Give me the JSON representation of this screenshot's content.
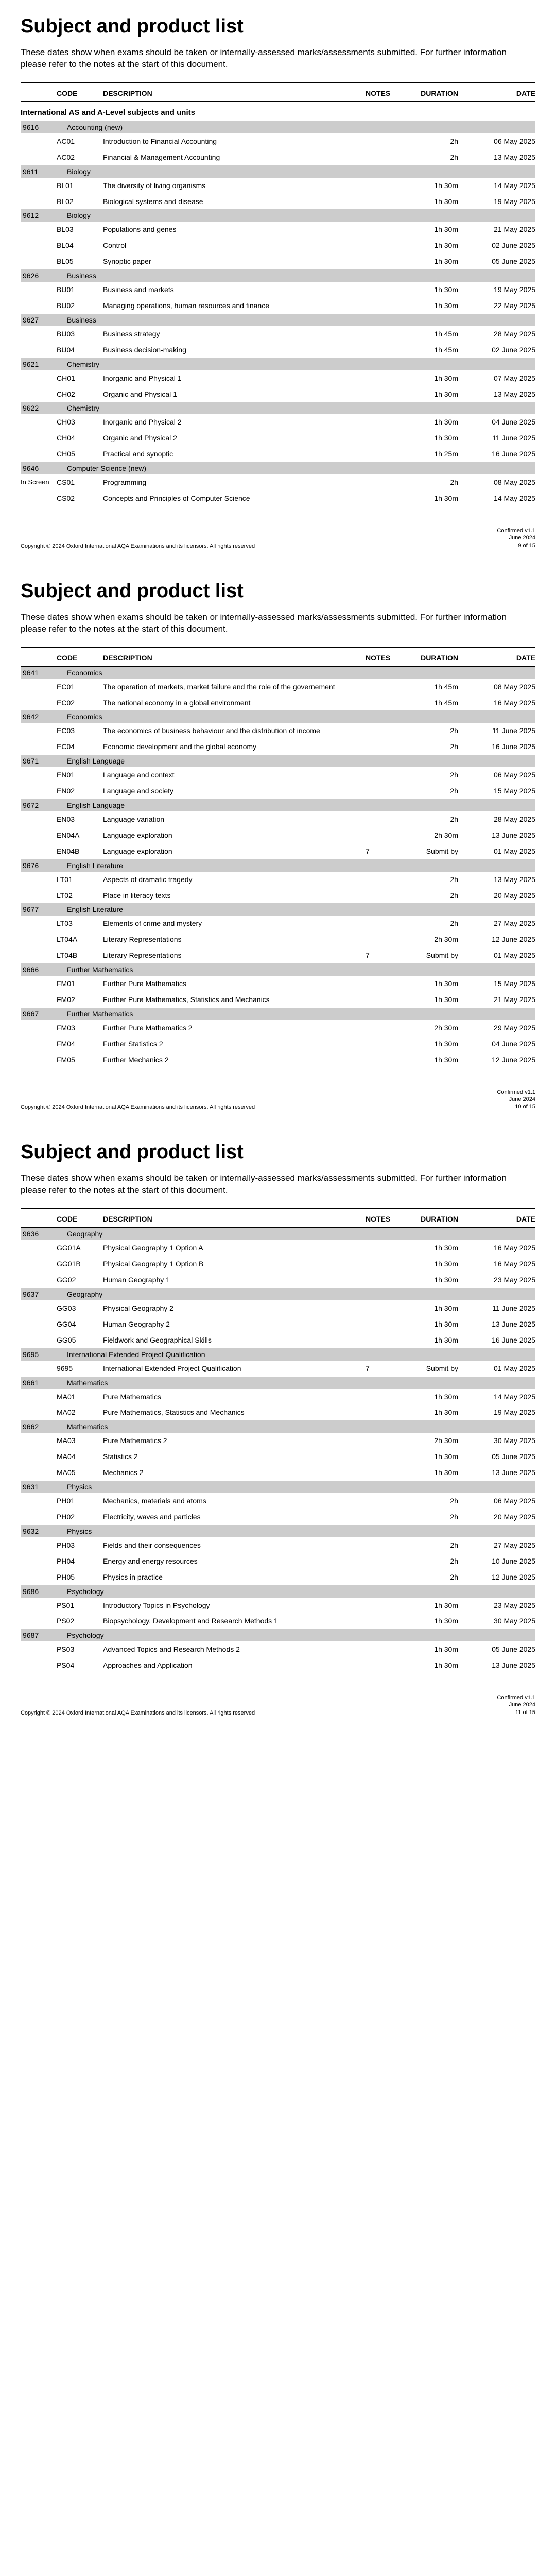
{
  "title": "Subject and product list",
  "intro": "These dates show when exams should be taken or internally-assessed marks/assessments submitted.  For further information please refer to the notes at the start of this document.",
  "headers": {
    "code": "CODE",
    "description": "DESCRIPTION",
    "notes": "NOTES",
    "duration": "DURATION",
    "date": "DATE"
  },
  "copyright": "Copyright © 2024 Oxford International AQA Examinations and its licensors. All rights reserved",
  "confirmed": "Confirmed v1.1",
  "confirmed_date": "June 2024",
  "pages": [
    {
      "page_num": "9 of 15",
      "section_heading": "International AS and A-Level subjects and units",
      "groups": [
        {
          "code": "9616",
          "name": "Accounting (new)",
          "rows": [
            {
              "code": "AC01",
              "desc": "Introduction to Financial Accounting",
              "notes": "",
              "dur": "2h",
              "date": "06 May 2025"
            },
            {
              "code": "AC02",
              "desc": "Financial & Management Accounting",
              "notes": "",
              "dur": "2h",
              "date": "13 May 2025"
            }
          ]
        },
        {
          "code": "9611",
          "name": "Biology",
          "rows": [
            {
              "code": "BL01",
              "desc": "The diversity of living organisms",
              "notes": "",
              "dur": "1h 30m",
              "date": "14 May 2025"
            },
            {
              "code": "BL02",
              "desc": "Biological systems and disease",
              "notes": "",
              "dur": "1h 30m",
              "date": "19 May 2025"
            }
          ]
        },
        {
          "code": "9612",
          "name": "Biology",
          "rows": [
            {
              "code": "BL03",
              "desc": "Populations and genes",
              "notes": "",
              "dur": "1h 30m",
              "date": "21 May 2025"
            },
            {
              "code": "BL04",
              "desc": "Control",
              "notes": "",
              "dur": "1h 30m",
              "date": "02 June 2025"
            },
            {
              "code": "BL05",
              "desc": "Synoptic paper",
              "notes": "",
              "dur": "1h 30m",
              "date": "05 June 2025"
            }
          ]
        },
        {
          "code": "9626",
          "name": "Business",
          "rows": [
            {
              "code": "BU01",
              "desc": "Business and markets",
              "notes": "",
              "dur": "1h 30m",
              "date": "19 May 2025"
            },
            {
              "code": "BU02",
              "desc": "Managing operations, human resources and finance",
              "notes": "",
              "dur": "1h 30m",
              "date": "22 May 2025"
            }
          ]
        },
        {
          "code": "9627",
          "name": "Business",
          "rows": [
            {
              "code": "BU03",
              "desc": "Business strategy",
              "notes": "",
              "dur": "1h 45m",
              "date": "28 May 2025"
            },
            {
              "code": "BU04",
              "desc": "Business decision-making",
              "notes": "",
              "dur": "1h 45m",
              "date": "02 June 2025"
            }
          ]
        },
        {
          "code": "9621",
          "name": "Chemistry",
          "rows": [
            {
              "code": "CH01",
              "desc": "Inorganic and Physical 1",
              "notes": "",
              "dur": "1h 30m",
              "date": "07 May 2025"
            },
            {
              "code": "CH02",
              "desc": "Organic and Physical 1",
              "notes": "",
              "dur": "1h 30m",
              "date": "13 May 2025"
            }
          ]
        },
        {
          "code": "9622",
          "name": "Chemistry",
          "rows": [
            {
              "code": "CH03",
              "desc": "Inorganic and Physical 2",
              "notes": "",
              "dur": "1h 30m",
              "date": "04 June 2025"
            },
            {
              "code": "CH04",
              "desc": "Organic and Physical 2",
              "notes": "",
              "dur": "1h 30m",
              "date": "11 June 2025"
            },
            {
              "code": "CH05",
              "desc": "Practical and synoptic",
              "notes": "",
              "dur": "1h 25m",
              "date": "16 June 2025"
            }
          ]
        },
        {
          "code": "9646",
          "name": "Computer Science (new)",
          "rows": [
            {
              "code": "CS01",
              "desc": "Programming",
              "notes": "",
              "dur": "2h",
              "date": "08 May 2025",
              "prefix": "In Screen"
            },
            {
              "code": "CS02",
              "desc": "Concepts and Principles of Computer Science",
              "notes": "",
              "dur": "1h 30m",
              "date": "14 May 2025"
            }
          ]
        }
      ]
    },
    {
      "page_num": "10 of 15",
      "groups": [
        {
          "code": "9641",
          "name": "Economics",
          "rows": [
            {
              "code": "EC01",
              "desc": "The operation of markets, market failure and the role of the governement",
              "notes": "",
              "dur": "1h 45m",
              "date": "08 May 2025"
            },
            {
              "code": "EC02",
              "desc": "The national economy in a global environment",
              "notes": "",
              "dur": "1h 45m",
              "date": "16 May 2025"
            }
          ]
        },
        {
          "code": "9642",
          "name": "Economics",
          "rows": [
            {
              "code": "EC03",
              "desc": "The economics of business behaviour and the distribution of income",
              "notes": "",
              "dur": "2h",
              "date": "11 June 2025"
            },
            {
              "code": "EC04",
              "desc": "Economic development and the global economy",
              "notes": "",
              "dur": "2h",
              "date": "16 June 2025"
            }
          ]
        },
        {
          "code": "9671",
          "name": "English Language",
          "rows": [
            {
              "code": "EN01",
              "desc": "Language and context",
              "notes": "",
              "dur": "2h",
              "date": "06 May 2025"
            },
            {
              "code": "EN02",
              "desc": "Language and society",
              "notes": "",
              "dur": "2h",
              "date": "15 May 2025"
            }
          ]
        },
        {
          "code": "9672",
          "name": "English Language",
          "rows": [
            {
              "code": "EN03",
              "desc": "Language variation",
              "notes": "",
              "dur": "2h",
              "date": "28 May 2025"
            },
            {
              "code": "EN04A",
              "desc": "Language exploration",
              "notes": "",
              "dur": "2h 30m",
              "date": "13 June 2025"
            },
            {
              "code": "EN04B",
              "desc": "Language exploration",
              "notes": "7",
              "dur": "Submit by",
              "date": "01 May 2025"
            }
          ]
        },
        {
          "code": "9676",
          "name": "English Literature",
          "rows": [
            {
              "code": "LT01",
              "desc": "Aspects of dramatic tragedy",
              "notes": "",
              "dur": "2h",
              "date": "13 May 2025"
            },
            {
              "code": "LT02",
              "desc": "Place in literacy texts",
              "notes": "",
              "dur": "2h",
              "date": "20 May 2025"
            }
          ]
        },
        {
          "code": "9677",
          "name": "English Literature",
          "rows": [
            {
              "code": "LT03",
              "desc": "Elements of crime and mystery",
              "notes": "",
              "dur": "2h",
              "date": "27 May 2025"
            },
            {
              "code": "LT04A",
              "desc": "Literary Representations",
              "notes": "",
              "dur": "2h 30m",
              "date": "12 June 2025"
            },
            {
              "code": "LT04B",
              "desc": "Literary Representations",
              "notes": "7",
              "dur": "Submit by",
              "date": "01 May 2025"
            }
          ]
        },
        {
          "code": "9666",
          "name": "Further Mathematics",
          "rows": [
            {
              "code": "FM01",
              "desc": "Further Pure Mathematics",
              "notes": "",
              "dur": "1h 30m",
              "date": "15 May 2025"
            },
            {
              "code": "FM02",
              "desc": "Further Pure Mathematics, Statistics and Mechanics",
              "notes": "",
              "dur": "1h 30m",
              "date": "21 May 2025"
            }
          ]
        },
        {
          "code": "9667",
          "name": "Further Mathematics",
          "rows": [
            {
              "code": "FM03",
              "desc": "Further Pure Mathematics 2",
              "notes": "",
              "dur": "2h 30m",
              "date": "29 May 2025"
            },
            {
              "code": "FM04",
              "desc": "Further Statistics 2",
              "notes": "",
              "dur": "1h 30m",
              "date": "04 June 2025"
            },
            {
              "code": "FM05",
              "desc": "Further Mechanics 2",
              "notes": "",
              "dur": "1h 30m",
              "date": "12 June 2025"
            }
          ]
        }
      ]
    },
    {
      "page_num": "11 of 15",
      "groups": [
        {
          "code": "9636",
          "name": "Geography",
          "rows": [
            {
              "code": "GG01A",
              "desc": "Physical Geography 1 Option A",
              "notes": "",
              "dur": "1h 30m",
              "date": "16 May 2025"
            },
            {
              "code": "GG01B",
              "desc": "Physical Geography 1 Option B",
              "notes": "",
              "dur": "1h 30m",
              "date": "16 May 2025"
            },
            {
              "code": "GG02",
              "desc": "Human Geography 1",
              "notes": "",
              "dur": "1h 30m",
              "date": "23 May 2025"
            }
          ]
        },
        {
          "code": "9637",
          "name": "Geography",
          "rows": [
            {
              "code": "GG03",
              "desc": "Physical Geography 2",
              "notes": "",
              "dur": "1h 30m",
              "date": "11 June 2025"
            },
            {
              "code": "GG04",
              "desc": "Human Geography 2",
              "notes": "",
              "dur": "1h 30m",
              "date": "13 June 2025"
            },
            {
              "code": "GG05",
              "desc": "Fieldwork and Geographical Skills",
              "notes": "",
              "dur": "1h 30m",
              "date": "16 June 2025"
            }
          ]
        },
        {
          "code": "9695",
          "name": "International Extended Project Qualification",
          "rows": [
            {
              "code": "9695",
              "desc": "International Extended Project Qualification",
              "notes": "7",
              "dur": "Submit by",
              "date": "01 May 2025"
            }
          ]
        },
        {
          "code": "9661",
          "name": "Mathematics",
          "rows": [
            {
              "code": "MA01",
              "desc": "Pure Mathematics",
              "notes": "",
              "dur": "1h 30m",
              "date": "14 May 2025"
            },
            {
              "code": "MA02",
              "desc": "Pure Mathematics, Statistics and Mechanics",
              "notes": "",
              "dur": "1h 30m",
              "date": "19 May 2025"
            }
          ]
        },
        {
          "code": "9662",
          "name": "Mathematics",
          "rows": [
            {
              "code": "MA03",
              "desc": "Pure Mathematics 2",
              "notes": "",
              "dur": "2h 30m",
              "date": "30 May 2025"
            },
            {
              "code": "MA04",
              "desc": "Statistics 2",
              "notes": "",
              "dur": "1h 30m",
              "date": "05 June 2025"
            },
            {
              "code": "MA05",
              "desc": "Mechanics 2",
              "notes": "",
              "dur": "1h 30m",
              "date": "13 June 2025"
            }
          ]
        },
        {
          "code": "9631",
          "name": "Physics",
          "rows": [
            {
              "code": "PH01",
              "desc": "Mechanics, materials and atoms",
              "notes": "",
              "dur": "2h",
              "date": "06 May 2025"
            },
            {
              "code": "PH02",
              "desc": "Electricity, waves and particles",
              "notes": "",
              "dur": "2h",
              "date": "20 May 2025"
            }
          ]
        },
        {
          "code": "9632",
          "name": "Physics",
          "rows": [
            {
              "code": "PH03",
              "desc": "Fields and their consequences",
              "notes": "",
              "dur": "2h",
              "date": "27 May 2025"
            },
            {
              "code": "PH04",
              "desc": "Energy and energy resources",
              "notes": "",
              "dur": "2h",
              "date": "10 June 2025"
            },
            {
              "code": "PH05",
              "desc": "Physics in practice",
              "notes": "",
              "dur": "2h",
              "date": "12 June 2025"
            }
          ]
        },
        {
          "code": "9686",
          "name": "Psychology",
          "rows": [
            {
              "code": "PS01",
              "desc": "Introductory Topics in Psychology",
              "notes": "",
              "dur": "1h 30m",
              "date": "23 May 2025"
            },
            {
              "code": "PS02",
              "desc": "Biopsychology, Development and Research Methods 1",
              "notes": "",
              "dur": "1h 30m",
              "date": "30 May 2025"
            }
          ]
        },
        {
          "code": "9687",
          "name": "Psychology",
          "rows": [
            {
              "code": "PS03",
              "desc": "Advanced Topics and Research Methods 2",
              "notes": "",
              "dur": "1h 30m",
              "date": "05 June 2025"
            },
            {
              "code": "PS04",
              "desc": "Approaches and Application",
              "notes": "",
              "dur": "1h 30m",
              "date": "13 June 2025"
            }
          ]
        }
      ]
    }
  ]
}
